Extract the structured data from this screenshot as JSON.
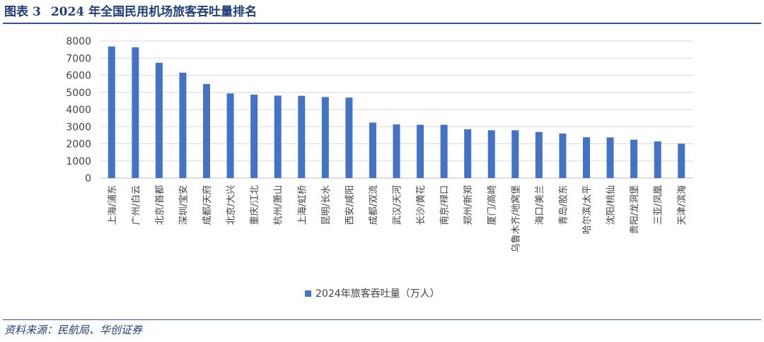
{
  "figure": {
    "label": "图表",
    "number": "3",
    "title": "2024 年全国民用机场旅客吞吐量排名"
  },
  "source": "资料来源：民航局、华创证券",
  "chart_data": {
    "type": "bar",
    "categories": [
      "上海/浦东",
      "广州/白云",
      "北京/首都",
      "深圳/宝安",
      "成都/天府",
      "北京/大兴",
      "重庆/江北",
      "杭州/萧山",
      "上海/虹桥",
      "昆明/长水",
      "西安/咸阳",
      "成都/双流",
      "武汉/天河",
      "长沙/黄花",
      "南京/禄口",
      "郑州/新郑",
      "厦门/高崎",
      "乌鲁木齐/地窝堡",
      "海口/美兰",
      "青岛/胶东",
      "哈尔滨/太平",
      "沈阳/桃仙",
      "贵阳/龙洞堡",
      "三亚/凤凰",
      "天津/滨海"
    ],
    "series": [
      {
        "name": "2024年旅客吞吐量（万人）",
        "color": "#4472c4",
        "values": [
          7680,
          7630,
          6730,
          6150,
          5490,
          4940,
          4870,
          4810,
          4800,
          4730,
          4700,
          3240,
          3130,
          3110,
          3110,
          2850,
          2790,
          2790,
          2690,
          2600,
          2380,
          2370,
          2240,
          2140,
          2010
        ]
      }
    ],
    "ylim": [
      0,
      8000
    ],
    "yticks": [
      0,
      1000,
      2000,
      3000,
      4000,
      5000,
      6000,
      7000,
      8000
    ],
    "grid": true,
    "legend_position": "bottom"
  }
}
